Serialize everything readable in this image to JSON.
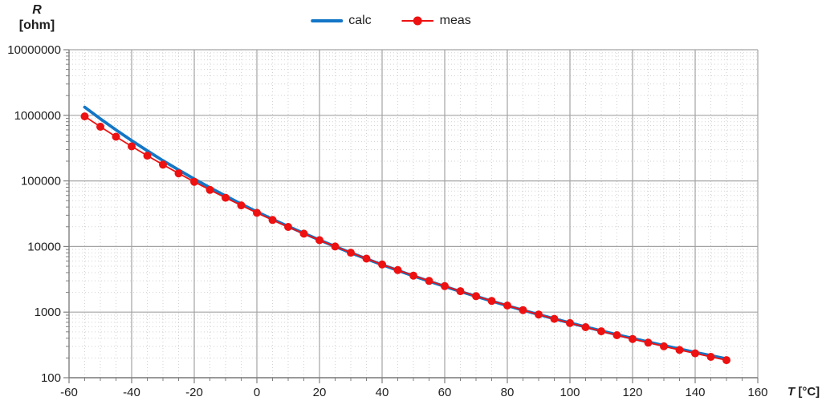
{
  "axes": {
    "y_title_symbol": "R",
    "y_title_unit": "[ohm]",
    "x_title_symbol": "T",
    "x_title_unit": "[°C]",
    "x_tick_labels": [
      "-60",
      "-40",
      "-20",
      "0",
      "20",
      "40",
      "60",
      "80",
      "100",
      "120",
      "140",
      "160"
    ],
    "y_tick_labels": [
      "100",
      "1000",
      "10000",
      "100000",
      "1000000",
      "10000000"
    ]
  },
  "legend": {
    "items": [
      {
        "label": "calc",
        "color": "#1376C6",
        "marker": false
      },
      {
        "label": "meas",
        "color": "#EE1111",
        "marker": true
      }
    ]
  },
  "colors": {
    "calc_line": "#1376C6",
    "meas_line": "#EE1111",
    "major_grid": "#A3A3A3",
    "minor_grid": "#D2D2D2",
    "axis_line": "#7F7F7F",
    "tick_text": "#1f1f1f"
  },
  "chart_data": {
    "type": "line",
    "title": "",
    "xlabel": "T [°C]",
    "ylabel": "R [ohm]",
    "x_axis": {
      "min": -60,
      "max": 160,
      "major_step": 20,
      "minor_step": 5
    },
    "y_axis": {
      "scale": "log",
      "min": 100,
      "max": 10000000,
      "majors": [
        100,
        1000,
        10000,
        100000,
        1000000,
        10000000
      ]
    },
    "grid": {
      "major": "solid",
      "minor": "dotted"
    },
    "legend_position": "top-center",
    "x": [
      -55,
      -50,
      -45,
      -40,
      -35,
      -30,
      -25,
      -20,
      -15,
      -10,
      -5,
      0,
      5,
      10,
      15,
      20,
      25,
      30,
      35,
      40,
      45,
      50,
      55,
      60,
      65,
      70,
      75,
      80,
      85,
      90,
      95,
      100,
      105,
      110,
      115,
      120,
      125,
      130,
      135,
      140,
      145,
      150
    ],
    "series": [
      {
        "name": "calc",
        "style": "solid-line",
        "color": "#1376C6",
        "values": [
          1333000,
          885000,
          599000,
          412000,
          288000,
          204000,
          147000,
          107100,
          79000,
          59000,
          44500,
          33850,
          26100,
          20270,
          15890,
          12550,
          10000,
          8026,
          6488,
          5278,
          4324,
          3563,
          2954,
          2462,
          2064,
          1739,
          1473,
          1253,
          1070,
          919,
          792,
          685,
          595,
          519,
          454,
          398,
          351,
          310,
          275,
          244,
          218,
          194
        ]
      },
      {
        "name": "meas",
        "style": "line-with-circle-markers",
        "color": "#EE1111",
        "values": [
          963000,
          670100,
          471700,
          336500,
          242600,
          177000,
          130400,
          97070,
          72930,
          55330,
          42320,
          32650,
          25390,
          19900,
          15710,
          12490,
          10000,
          8057,
          6531,
          5327,
          4369,
          3603,
          2986,
          2488,
          2083,
          1752,
          1481,
          1258,
          1072,
          918,
          789,
          680,
          589,
          511,
          445,
          389,
          342,
          301,
          265,
          235,
          208,
          185
        ]
      }
    ]
  }
}
